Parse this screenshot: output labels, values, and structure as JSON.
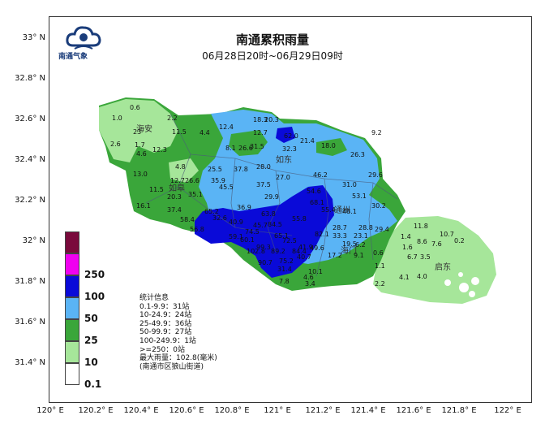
{
  "header": {
    "title": "南通累积雨量",
    "subtitle": "06月28日20时~06月29日09时",
    "logo_text": "南通气象"
  },
  "axes": {
    "lat_labels": [
      "33° N",
      "32.8° N",
      "32.6° N",
      "32.4° N",
      "32.2° N",
      "32° N",
      "31.8° N",
      "31.6° N",
      "31.4° N"
    ],
    "lon_labels": [
      "120° E",
      "120.2° E",
      "120.4° E",
      "120.6° E",
      "120.8° E",
      "121° E",
      "121.2° E",
      "121.4° E",
      "121.6° E",
      "121.8° E",
      "122° E"
    ]
  },
  "legend": {
    "items": [
      {
        "label": "",
        "color": "#7a0a3c"
      },
      {
        "label": "250",
        "color": "#f000f0"
      },
      {
        "label": "100",
        "color": "#0a0ad8"
      },
      {
        "label": "50",
        "color": "#5ab4f5"
      },
      {
        "label": "25",
        "color": "#3aa63a"
      },
      {
        "label": "10",
        "color": "#a6e69a"
      },
      {
        "label": "0.1",
        "color": "#ffffff"
      }
    ]
  },
  "stats": {
    "heading": "统计信息",
    "lines": [
      "0.1-9.9：31站",
      "10-24.9：24站",
      "25-49.9：36站",
      "50-99.9：27站",
      "100-249.9：1站",
      ">=250：0站",
      "最大雨量：102.8(毫米)",
      "(南通市区狼山街道)"
    ]
  },
  "county_names": [
    "海安",
    "如东",
    "如皋",
    "通州",
    "海门",
    "启东"
  ],
  "station_values": [
    "0.6",
    "1.0",
    "2.2",
    "23",
    "11.5",
    "4.4",
    "12.4",
    "18.3",
    "20.3",
    "12.7",
    "62.0",
    "9.2",
    "1.7",
    "2.6",
    "12.3",
    "4.6",
    "8.1",
    "26.6",
    "31.5",
    "21.4",
    "18.0",
    "32.3",
    "26.3",
    "13.0",
    "4.8",
    "12.7",
    "26.6",
    "25.5",
    "37.8",
    "28.0",
    "27.0",
    "46.2",
    "31.0",
    "29.6",
    "11.5",
    "20.3",
    "35.1",
    "35.9",
    "45.5",
    "37.5",
    "29.9",
    "54.6",
    "68.1",
    "53.1",
    "30.2",
    "16.1",
    "37.4",
    "65.2",
    "36.9",
    "63.8",
    "55.4",
    "48.1",
    "11.8",
    "58.4",
    "32.6",
    "40.9",
    "84.5",
    "55.8",
    "10.7",
    "56.8",
    "45.7",
    "74.5",
    "65.1",
    "82.1",
    "28.7",
    "28.8",
    "29.4",
    "8.6",
    "7.6",
    "0.2",
    "59.1",
    "60.1",
    "72.5",
    "33.3",
    "23.1",
    "1.4",
    "99.3",
    "89.2",
    "41.9",
    "19.5",
    "6.2",
    "1.6",
    "102.8",
    "84.4",
    "49.6",
    "17.2",
    "9.1",
    "0.6",
    "6.7",
    "3.5",
    "90.7",
    "75.2",
    "40.7",
    "1.1",
    "31.4",
    "10.1",
    "4.1",
    "4.0",
    "7.8",
    "4.6",
    "3.4",
    "2.2"
  ]
}
